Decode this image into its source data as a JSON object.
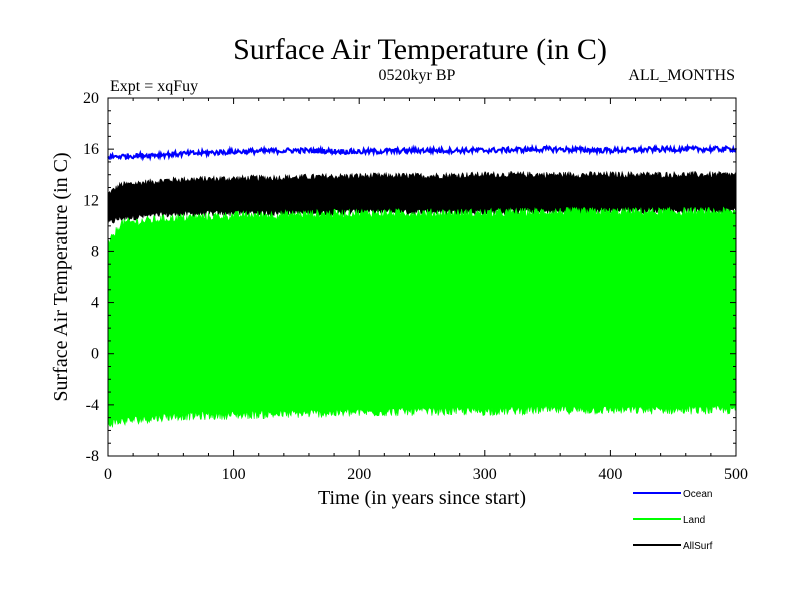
{
  "chart_data": {
    "type": "line",
    "title": "Surface Air Temperature (in C)",
    "subtitle": "0520kyr BP",
    "experiment_label": "Expt = xqFuy",
    "months_label": "ALL_MONTHS",
    "xlabel": "Time (in years since start)",
    "ylabel": "Surface Air Temperature (in C)",
    "xlim": [
      0,
      500
    ],
    "ylim": [
      -8,
      20
    ],
    "x_ticks": [
      "0",
      "100",
      "200",
      "300",
      "400",
      "500"
    ],
    "y_ticks": [
      "-8",
      "-4",
      "0",
      "4",
      "8",
      "12",
      "16",
      "20"
    ],
    "legend_position": "bottom-right",
    "grid": false,
    "series": [
      {
        "name": "Ocean",
        "color": "#0000ff",
        "style": "noisy annual mean",
        "x": [
          0,
          50,
          100,
          150,
          200,
          250,
          300,
          350,
          400,
          450,
          500
        ],
        "values": [
          15.4,
          15.6,
          15.8,
          15.9,
          15.8,
          15.9,
          15.9,
          16.0,
          15.9,
          16.0,
          16.0
        ],
        "noise": 0.2
      },
      {
        "name": "Land",
        "color": "#00ff00",
        "style": "monthly envelope",
        "x": [
          0,
          10,
          50,
          100,
          150,
          200,
          250,
          300,
          350,
          400,
          450,
          500
        ],
        "upper": [
          8.5,
          10.2,
          10.6,
          10.8,
          10.9,
          11.0,
          11.0,
          11.0,
          11.1,
          11.1,
          11.1,
          11.1
        ],
        "lower": [
          -5.5,
          -5.3,
          -4.9,
          -4.8,
          -4.7,
          -4.6,
          -4.5,
          -4.5,
          -4.4,
          -4.4,
          -4.4,
          -4.4
        ],
        "noise": 0.35
      },
      {
        "name": "AllSurf",
        "color": "#000000",
        "style": "monthly envelope",
        "x": [
          0,
          10,
          50,
          100,
          150,
          200,
          250,
          300,
          350,
          400,
          450,
          500
        ],
        "upper": [
          12.5,
          13.2,
          13.6,
          13.7,
          13.8,
          13.9,
          13.9,
          14.0,
          14.0,
          14.0,
          14.0,
          14.0
        ],
        "lower": [
          10.2,
          10.6,
          10.9,
          11.0,
          11.0,
          11.1,
          11.1,
          11.1,
          11.1,
          11.2,
          11.2,
          11.2
        ],
        "noise": 0.25
      }
    ]
  }
}
